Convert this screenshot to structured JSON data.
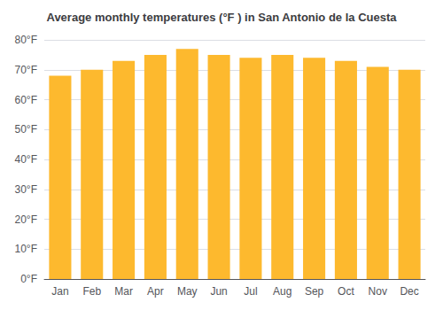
{
  "chart_data": {
    "type": "bar",
    "title": "Average monthly temperatures (°F ) in San Antonio de la Cuesta",
    "categories": [
      "Jan",
      "Feb",
      "Mar",
      "Apr",
      "May",
      "Jun",
      "Jul",
      "Aug",
      "Sep",
      "Oct",
      "Nov",
      "Dec"
    ],
    "values": [
      68,
      70,
      73,
      75,
      77,
      75,
      74,
      75,
      74,
      73,
      71,
      70
    ],
    "color": "#FDB92E",
    "ylim": [
      0,
      80
    ],
    "yticks": [
      {
        "value": 0,
        "label": "0°F"
      },
      {
        "value": 10,
        "label": "10°F"
      },
      {
        "value": 20,
        "label": "20°F"
      },
      {
        "value": 30,
        "label": "30°F"
      },
      {
        "value": 40,
        "label": "40°F"
      },
      {
        "value": 50,
        "label": "50°F"
      },
      {
        "value": 60,
        "label": "60°F"
      },
      {
        "value": 70,
        "label": "70°F"
      },
      {
        "value": 80,
        "label": "80°F"
      }
    ],
    "grid": true
  }
}
